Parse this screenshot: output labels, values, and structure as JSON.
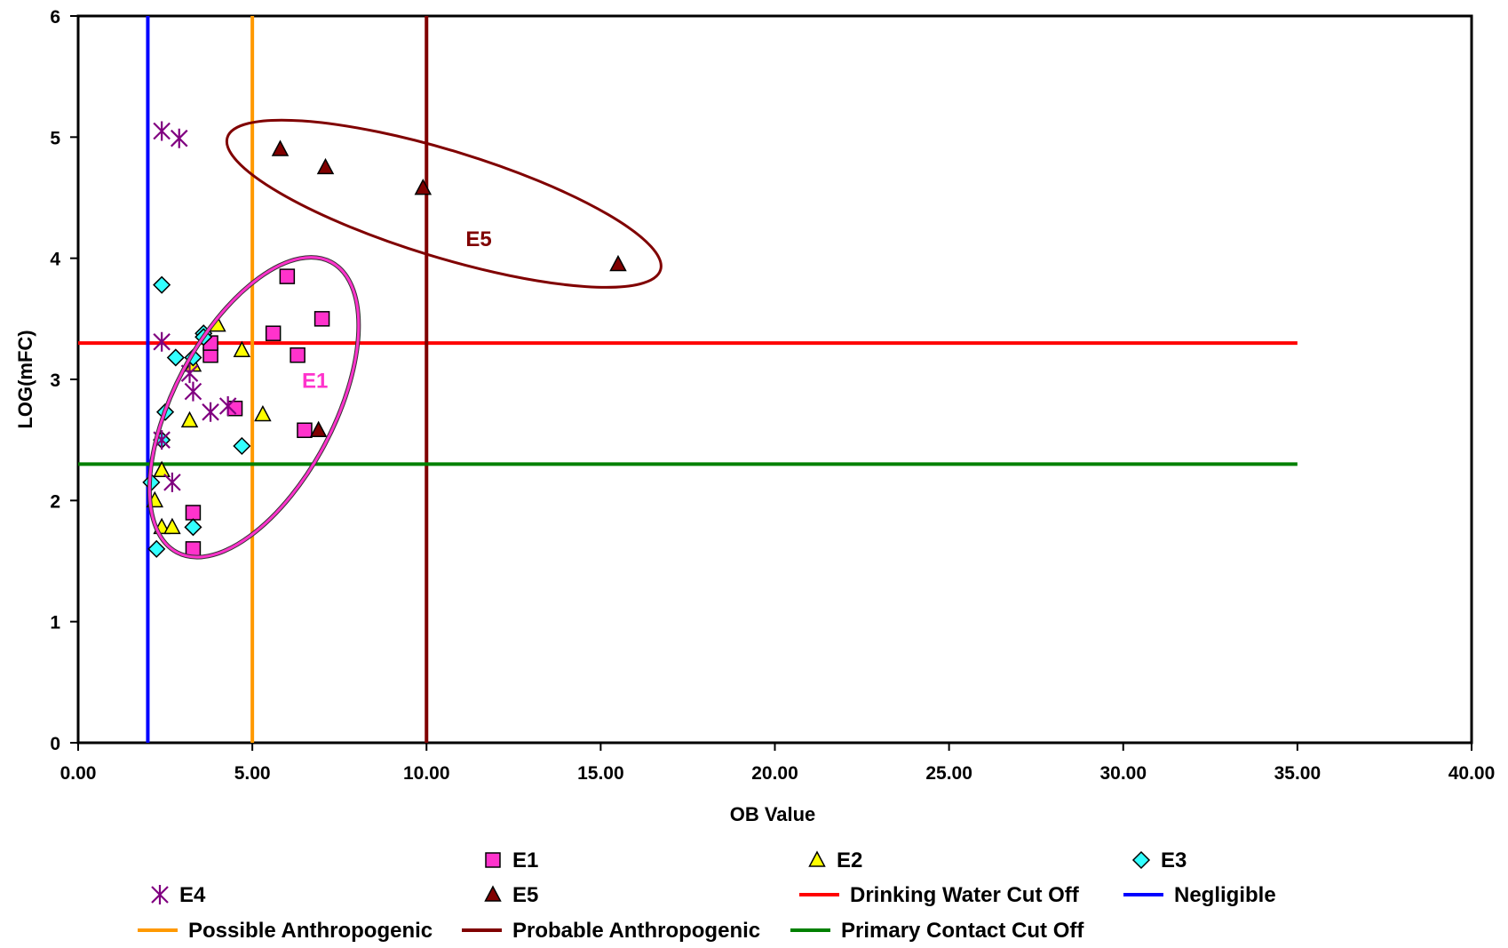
{
  "chart_data": {
    "type": "scatter",
    "title": "",
    "xlabel": "OB Value",
    "ylabel": "LOG(mFC)",
    "xlim": [
      0,
      40
    ],
    "ylim": [
      0,
      6
    ],
    "x_ticks": [
      "0.00",
      "5.00",
      "10.00",
      "15.00",
      "20.00",
      "25.00",
      "30.00",
      "35.00",
      "40.00"
    ],
    "y_ticks": [
      "0",
      "1",
      "2",
      "3",
      "4",
      "5",
      "6"
    ],
    "grid": false,
    "legend_position": "bottom",
    "series": [
      {
        "name": "E1",
        "marker": "square",
        "color": "#ff33cc",
        "x": [
          3.3,
          3.3,
          3.8,
          3.8,
          4.5,
          5.6,
          6.0,
          6.3,
          6.5,
          7.0
        ],
        "y": [
          1.6,
          1.9,
          3.2,
          3.3,
          2.76,
          3.38,
          3.85,
          3.2,
          2.58,
          3.5
        ]
      },
      {
        "name": "E2",
        "marker": "triangle",
        "color": "#ffff00",
        "x": [
          2.2,
          2.4,
          2.4,
          2.7,
          3.2,
          3.3,
          4.0,
          4.7,
          5.3
        ],
        "y": [
          2.0,
          1.78,
          2.25,
          1.78,
          2.66,
          3.12,
          3.45,
          3.24,
          2.71
        ]
      },
      {
        "name": "E3",
        "marker": "diamond",
        "color": "#33ffff",
        "x": [
          2.1,
          2.25,
          2.4,
          2.4,
          2.5,
          2.8,
          3.3,
          3.3,
          3.6,
          3.6,
          4.7
        ],
        "y": [
          2.15,
          1.6,
          3.78,
          2.5,
          2.73,
          3.18,
          1.78,
          3.18,
          3.38,
          3.35,
          2.45
        ]
      },
      {
        "name": "E4",
        "marker": "star",
        "color": "#800080",
        "x": [
          2.4,
          2.9,
          2.4,
          3.2,
          3.3,
          3.8,
          4.3,
          2.7,
          2.4
        ],
        "y": [
          5.05,
          4.99,
          3.31,
          3.05,
          2.9,
          2.73,
          2.78,
          2.15,
          2.5
        ]
      },
      {
        "name": "E5",
        "marker": "triangle",
        "color": "#800000",
        "x": [
          5.8,
          7.1,
          9.9,
          15.5,
          6.9
        ],
        "y": [
          4.9,
          4.75,
          4.58,
          3.95,
          2.58
        ]
      }
    ],
    "reference_lines": [
      {
        "name": "Drinking Water Cut Off",
        "orientation": "horizontal",
        "value": 3.3,
        "from": 0,
        "to": 35,
        "color": "#ff0000"
      },
      {
        "name": "Negligible",
        "orientation": "vertical",
        "value": 2,
        "color": "#0000ff"
      },
      {
        "name": "Possible Anthropogenic",
        "orientation": "vertical",
        "value": 5,
        "color": "#ff9900"
      },
      {
        "name": "Probable Anthropogenic",
        "orientation": "vertical",
        "value": 10,
        "color": "#800000"
      },
      {
        "name": "Primary Contact Cut Off",
        "orientation": "horizontal",
        "value": 2.3,
        "from": 0,
        "to": 35,
        "color": "#008000"
      }
    ],
    "annotations": [
      {
        "text": "E1",
        "x": 6.8,
        "y": 2.93,
        "color": "#ff33cc",
        "ellipse": {
          "cx": 5.05,
          "cy": 2.77,
          "rx": 1.5,
          "ry": 1.3,
          "color": "#ff33cc"
        }
      },
      {
        "text": "E5",
        "x": 11.5,
        "y": 4.1,
        "color": "#800000",
        "ellipse": {
          "cx": 10.5,
          "cy": 4.45,
          "rx": 6.8,
          "ry": 0.42,
          "color": "#800000"
        }
      }
    ],
    "legend": [
      {
        "label": "E1",
        "kind": "marker",
        "series": 0
      },
      {
        "label": "E2",
        "kind": "marker",
        "series": 1
      },
      {
        "label": "E3",
        "kind": "marker",
        "series": 2
      },
      {
        "label": "E4",
        "kind": "marker",
        "series": 3
      },
      {
        "label": "E5",
        "kind": "marker",
        "series": 4
      },
      {
        "label": "Drinking Water Cut Off",
        "kind": "line",
        "color": "#ff0000"
      },
      {
        "label": "Negligible",
        "kind": "line",
        "color": "#0000ff"
      },
      {
        "label": "Possible Anthropogenic",
        "kind": "line",
        "color": "#ff9900"
      },
      {
        "label": "Probable Anthropogenic",
        "kind": "line",
        "color": "#800000"
      },
      {
        "label": "Primary Contact Cut Off",
        "kind": "line",
        "color": "#008000"
      }
    ]
  }
}
